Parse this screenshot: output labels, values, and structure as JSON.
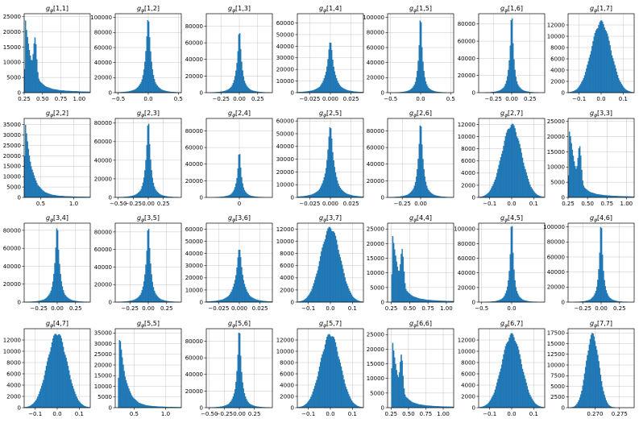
{
  "figure": {
    "bar_color": "#1f77b4",
    "grid_color": "#b0b0b0"
  },
  "chart_data": [
    {
      "type": "bar",
      "title_sub": "φ",
      "title_index": "[1,1]",
      "shape": "multimodal",
      "center": 0.3,
      "spread": 0.2,
      "xlim": [
        0.25,
        1.15
      ],
      "ylim": [
        0,
        26000
      ],
      "xticks": [
        0.25,
        0.5,
        0.75,
        1.0
      ],
      "xtick_labels": [
        "0.25",
        "0.50",
        "0.75",
        "1.00"
      ],
      "yticks": [
        0,
        5000,
        10000,
        15000,
        20000,
        25000
      ],
      "ytick_labels": [
        "0",
        "5000",
        "10000",
        "15000",
        "20000",
        "25000"
      ],
      "peak": 25500
    },
    {
      "type": "bar",
      "title_sub": "φ",
      "title_index": "[1,2]",
      "shape": "spike",
      "center": 0.0,
      "spread": 0.04,
      "xlim": [
        -0.55,
        0.55
      ],
      "ylim": [
        0,
        105000
      ],
      "xticks": [
        -0.5,
        0.0,
        0.5
      ],
      "xtick_labels": [
        "−0.5",
        "0.0",
        "0.5"
      ],
      "yticks": [
        0,
        20000,
        40000,
        60000,
        80000,
        100000
      ],
      "ytick_labels": [
        "0",
        "20000",
        "40000",
        "60000",
        "80000",
        "100000"
      ],
      "peak": 100000
    },
    {
      "type": "bar",
      "title_sub": "φ",
      "title_index": "[1,3]",
      "shape": "spike",
      "center": 0.0,
      "spread": 0.03,
      "xlim": [
        -0.45,
        0.45
      ],
      "ylim": [
        0,
        95000
      ],
      "xticks": [
        -0.25,
        0.0,
        0.25
      ],
      "xtick_labels": [
        "−0.25",
        "0.00",
        "0.25"
      ],
      "yticks": [
        0,
        20000,
        40000,
        60000,
        80000
      ],
      "ytick_labels": [
        "0",
        "20000",
        "40000",
        "60000",
        "80000"
      ],
      "peak": 72000
    },
    {
      "type": "bar",
      "title_sub": "φ",
      "title_index": "[1,4]",
      "shape": "spike",
      "center": 0.0,
      "spread": 0.004,
      "xlim": [
        -0.04,
        0.04
      ],
      "ylim": [
        0,
        68000
      ],
      "xticks": [
        -0.025,
        0.0,
        0.025
      ],
      "xtick_labels": [
        "−0.025",
        "0.000",
        "0.025"
      ],
      "yticks": [
        0,
        10000,
        20000,
        30000,
        40000,
        50000,
        60000
      ],
      "ytick_labels": [
        "0",
        "10000",
        "20000",
        "30000",
        "40000",
        "50000",
        "60000"
      ],
      "peak": 43000
    },
    {
      "type": "bar",
      "title_sub": "φ",
      "title_index": "[1,5]",
      "shape": "spike",
      "center": 0.0,
      "spread": 0.03,
      "xlim": [
        -0.55,
        0.55
      ],
      "ylim": [
        0,
        105000
      ],
      "xticks": [
        -0.5,
        0.0,
        0.5
      ],
      "xtick_labels": [
        "−0.5",
        "0.0",
        "0.5"
      ],
      "yticks": [
        0,
        20000,
        40000,
        60000,
        80000,
        100000
      ],
      "ytick_labels": [
        "0",
        "20000",
        "40000",
        "60000",
        "80000",
        "100000"
      ],
      "peak": 98000
    },
    {
      "type": "bar",
      "title_sub": "φ",
      "title_index": "[1,6]",
      "shape": "spike",
      "center": 0.0,
      "spread": 0.025,
      "xlim": [
        -0.45,
        0.45
      ],
      "ylim": [
        0,
        92000
      ],
      "xticks": [
        -0.25,
        0.0,
        0.25
      ],
      "xtick_labels": [
        "−0.25",
        "0.00",
        "0.25"
      ],
      "yticks": [
        0,
        20000,
        40000,
        60000,
        80000
      ],
      "ytick_labels": [
        "0",
        "20000",
        "40000",
        "60000",
        "80000"
      ],
      "peak": 88000
    },
    {
      "type": "bar",
      "title_sub": "φ",
      "title_index": "[1,7]",
      "shape": "normal",
      "center": 0.0,
      "spread": 0.045,
      "xlim": [
        -0.15,
        0.15
      ],
      "ylim": [
        0,
        14000
      ],
      "xticks": [
        -0.1,
        0.0,
        0.1
      ],
      "xtick_labels": [
        "−0.1",
        "0.0",
        "0.1"
      ],
      "yticks": [
        0,
        2000,
        4000,
        6000,
        8000,
        10000,
        12000
      ],
      "ytick_labels": [
        "0",
        "2000",
        "4000",
        "6000",
        "8000",
        "10000",
        "12000"
      ],
      "peak": 12800
    },
    {
      "type": "bar",
      "title_sub": "φ",
      "title_index": "[2,2]",
      "shape": "skew",
      "center": 0.32,
      "spread": 0.18,
      "xlim": [
        0.25,
        1.25
      ],
      "ylim": [
        0,
        38000
      ],
      "xticks": [
        0.5,
        1.0
      ],
      "xtick_labels": [
        "0.5",
        "1.0"
      ],
      "yticks": [
        0,
        5000,
        10000,
        15000,
        20000,
        25000,
        30000,
        35000
      ],
      "ytick_labels": [
        "0",
        "5000",
        "10000",
        "15000",
        "20000",
        "25000",
        "30000",
        "35000"
      ],
      "peak": 36000
    },
    {
      "type": "bar",
      "title_sub": "φ",
      "title_index": "[2,3]",
      "shape": "spike",
      "center": 0.0,
      "spread": 0.035,
      "xlim": [
        -0.55,
        0.55
      ],
      "ylim": [
        0,
        85000
      ],
      "xticks": [
        -0.5,
        -0.25,
        0.0,
        0.25
      ],
      "xtick_labels": [
        "−0.50",
        "−0.25",
        "0.00",
        "0.25"
      ],
      "yticks": [
        0,
        20000,
        40000,
        60000,
        80000
      ],
      "ytick_labels": [
        "0",
        "20000",
        "40000",
        "60000",
        "80000"
      ],
      "peak": 82000
    },
    {
      "type": "bar",
      "title_sub": "φ",
      "title_index": "[2,4]",
      "shape": "spike",
      "center": 0.0,
      "spread": 0.03,
      "xlim": [
        -0.5,
        0.5
      ],
      "ylim": [
        0,
        95000
      ],
      "xticks": [
        0.0
      ],
      "xtick_labels": [
        "0"
      ],
      "yticks": [
        0,
        20000,
        40000,
        60000,
        80000
      ],
      "ytick_labels": [
        "0",
        "20000",
        "40000",
        "60000",
        "80000"
      ],
      "peak": 52000
    },
    {
      "type": "bar",
      "title_sub": "φ",
      "title_index": "[2,5]",
      "shape": "spike",
      "center": 0.0,
      "spread": 0.004,
      "xlim": [
        -0.04,
        0.04
      ],
      "ylim": [
        0,
        62000
      ],
      "xticks": [
        -0.025,
        0.0,
        0.025
      ],
      "xtick_labels": [
        "−0.025",
        "0.000",
        "0.025"
      ],
      "yticks": [
        0,
        10000,
        20000,
        30000,
        40000,
        50000,
        60000
      ],
      "ytick_labels": [
        "0",
        "10000",
        "20000",
        "30000",
        "40000",
        "50000",
        "60000"
      ],
      "peak": 55000
    },
    {
      "type": "bar",
      "title_sub": "φ",
      "title_index": "[2,6]",
      "shape": "spike",
      "center": 0.0,
      "spread": 0.03,
      "xlim": [
        -0.45,
        0.45
      ],
      "ylim": [
        0,
        95000
      ],
      "xticks": [
        -0.25,
        0.0
      ],
      "xtick_labels": [
        "−0.25",
        "0.00"
      ],
      "yticks": [
        0,
        20000,
        40000,
        60000,
        80000
      ],
      "ytick_labels": [
        "0",
        "20000",
        "40000",
        "60000",
        "80000"
      ],
      "peak": 90000
    },
    {
      "type": "bar",
      "title_sub": "φ",
      "title_index": "[2,7]",
      "shape": "normal",
      "center": 0.0,
      "spread": 0.045,
      "xlim": [
        -0.15,
        0.15
      ],
      "ylim": [
        0,
        13000
      ],
      "xticks": [
        -0.1,
        0.0,
        0.1
      ],
      "xtick_labels": [
        "−0.1",
        "0.0",
        "0.1"
      ],
      "yticks": [
        0,
        2000,
        4000,
        6000,
        8000,
        10000,
        12000
      ],
      "ytick_labels": [
        "0",
        "2000",
        "4000",
        "6000",
        "8000",
        "10000",
        "12000"
      ],
      "peak": 12200
    },
    {
      "type": "bar",
      "title_sub": "φ",
      "title_index": "[3,3]",
      "shape": "multimodal",
      "center": 0.3,
      "spread": 0.18,
      "xlim": [
        0.25,
        1.1
      ],
      "ylim": [
        0,
        26000
      ],
      "xticks": [
        0.25,
        0.5,
        0.75,
        1.0
      ],
      "xtick_labels": [
        "0.25",
        "0.50",
        "0.75",
        "1.00"
      ],
      "yticks": [
        0,
        5000,
        10000,
        15000,
        20000,
        25000
      ],
      "ytick_labels": [
        "0",
        "5000",
        "10000",
        "15000",
        "20000",
        "25000"
      ],
      "peak": 25000
    },
    {
      "type": "bar",
      "title_sub": "φ",
      "title_index": "[3,4]",
      "shape": "spike",
      "center": 0.0,
      "spread": 0.03,
      "xlim": [
        -0.45,
        0.45
      ],
      "ylim": [
        0,
        88000
      ],
      "xticks": [
        -0.25,
        0.0,
        0.25
      ],
      "xtick_labels": [
        "−0.25",
        "0.00",
        "0.25"
      ],
      "yticks": [
        0,
        20000,
        40000,
        60000,
        80000
      ],
      "ytick_labels": [
        "0",
        "20000",
        "40000",
        "60000",
        "80000"
      ],
      "peak": 84000
    },
    {
      "type": "bar",
      "title_sub": "φ",
      "title_index": "[3,5]",
      "shape": "spike",
      "center": 0.0,
      "spread": 0.03,
      "xlim": [
        -0.45,
        0.45
      ],
      "ylim": [
        0,
        90000
      ],
      "xticks": [
        -0.25,
        0.0,
        0.25
      ],
      "xtick_labels": [
        "−0.25",
        "0.00",
        "0.25"
      ],
      "yticks": [
        0,
        20000,
        40000,
        60000,
        80000
      ],
      "ytick_labels": [
        "0",
        "20000",
        "40000",
        "60000",
        "80000"
      ],
      "peak": 85000
    },
    {
      "type": "bar",
      "title_sub": "φ",
      "title_index": "[3,6]",
      "shape": "spike",
      "center": 0.0,
      "spread": 0.004,
      "xlim": [
        -0.04,
        0.04
      ],
      "ylim": [
        0,
        65000
      ],
      "xticks": [
        -0.025,
        0.0,
        0.025
      ],
      "xtick_labels": [
        "−0.025",
        "0.000",
        "0.025"
      ],
      "yticks": [
        0,
        10000,
        20000,
        30000,
        40000,
        50000,
        60000
      ],
      "ytick_labels": [
        "0",
        "10000",
        "20000",
        "30000",
        "40000",
        "50000",
        "60000"
      ],
      "peak": 43000
    },
    {
      "type": "bar",
      "title_sub": "φ",
      "title_index": "[3,7]",
      "shape": "normal",
      "center": 0.0,
      "spread": 0.045,
      "xlim": [
        -0.15,
        0.15
      ],
      "ylim": [
        0,
        13000
      ],
      "xticks": [
        -0.1,
        0.0,
        0.1
      ],
      "xtick_labels": [
        "−0.1",
        "0.0",
        "0.1"
      ],
      "yticks": [
        0,
        2000,
        4000,
        6000,
        8000,
        10000,
        12000
      ],
      "ytick_labels": [
        "0",
        "2000",
        "4000",
        "6000",
        "8000",
        "10000",
        "12000"
      ],
      "peak": 12500
    },
    {
      "type": "bar",
      "title_sub": "φ",
      "title_index": "[4,4]",
      "shape": "multimodal",
      "center": 0.3,
      "spread": 0.2,
      "xlim": [
        0.2,
        1.1
      ],
      "ylim": [
        0,
        27000
      ],
      "xticks": [
        0.25,
        0.5,
        0.75,
        1.0
      ],
      "xtick_labels": [
        "0.25",
        "0.50",
        "0.75",
        "1.00"
      ],
      "yticks": [
        0,
        5000,
        10000,
        15000,
        20000,
        25000
      ],
      "ytick_labels": [
        "0",
        "5000",
        "10000",
        "15000",
        "20000",
        "25000"
      ],
      "peak": 25500
    },
    {
      "type": "bar",
      "title_sub": "φ",
      "title_index": "[4,5]",
      "shape": "spike",
      "center": 0.0,
      "spread": 0.03,
      "xlim": [
        -0.55,
        0.55
      ],
      "ylim": [
        0,
        108000
      ],
      "xticks": [
        -0.5,
        0.0
      ],
      "xtick_labels": [
        "−0.5",
        "0.0"
      ],
      "yticks": [
        0,
        20000,
        40000,
        60000,
        80000,
        100000
      ],
      "ytick_labels": [
        "0",
        "20000",
        "40000",
        "60000",
        "80000",
        "100000"
      ],
      "peak": 104000
    },
    {
      "type": "bar",
      "title_sub": "φ",
      "title_index": "[4,6]",
      "shape": "spike",
      "center": 0.0,
      "spread": 0.025,
      "xlim": [
        -0.45,
        0.45
      ],
      "ylim": [
        0,
        105000
      ],
      "xticks": [
        -0.25,
        0.0,
        0.25
      ],
      "xtick_labels": [
        "−0.25",
        "0.00",
        "0.25"
      ],
      "yticks": [
        0,
        20000,
        40000,
        60000,
        80000,
        100000
      ],
      "ytick_labels": [
        "0",
        "20000",
        "40000",
        "60000",
        "80000",
        "100000"
      ],
      "peak": 100000
    },
    {
      "type": "bar",
      "title_sub": "φ",
      "title_index": "[4,7]",
      "shape": "normal",
      "center": 0.0,
      "spread": 0.045,
      "xlim": [
        -0.15,
        0.15
      ],
      "ylim": [
        0,
        14000
      ],
      "xticks": [
        -0.1,
        0.0,
        0.1
      ],
      "xtick_labels": [
        "−0.1",
        "0.0",
        "0.1"
      ],
      "yticks": [
        0,
        2000,
        4000,
        6000,
        8000,
        10000,
        12000
      ],
      "ytick_labels": [
        "0",
        "2000",
        "4000",
        "6000",
        "8000",
        "10000",
        "12000"
      ],
      "peak": 13500
    },
    {
      "type": "bar",
      "title_sub": "φ",
      "title_index": "[5,5]",
      "shape": "skew",
      "center": 0.32,
      "spread": 0.18,
      "xlim": [
        0.2,
        1.25
      ],
      "ylim": [
        0,
        37000
      ],
      "xticks": [
        0.5,
        1.0
      ],
      "xtick_labels": [
        "0.5",
        "1.0"
      ],
      "yticks": [
        0,
        5000,
        10000,
        15000,
        20000,
        25000,
        30000,
        35000
      ],
      "ytick_labels": [
        "0",
        "5000",
        "10000",
        "15000",
        "20000",
        "25000",
        "30000",
        "35000"
      ],
      "peak": 35500
    },
    {
      "type": "bar",
      "title_sub": "φ",
      "title_index": "[5,6]",
      "shape": "spike",
      "center": 0.0,
      "spread": 0.035,
      "xlim": [
        -0.55,
        0.55
      ],
      "ylim": [
        0,
        95000
      ],
      "xticks": [
        -0.5,
        -0.25,
        0.0,
        0.25
      ],
      "xtick_labels": [
        "−0.50",
        "−0.25",
        "0.00",
        "0.25"
      ],
      "yticks": [
        0,
        20000,
        40000,
        60000,
        80000
      ],
      "ytick_labels": [
        "0",
        "20000",
        "40000",
        "60000",
        "80000"
      ],
      "peak": 90000
    },
    {
      "type": "bar",
      "title_sub": "φ",
      "title_index": "[5,7]",
      "shape": "normal",
      "center": 0.0,
      "spread": 0.045,
      "xlim": [
        -0.15,
        0.15
      ],
      "ylim": [
        0,
        14000
      ],
      "xticks": [
        -0.1,
        0.0,
        0.1
      ],
      "xtick_labels": [
        "−0.1",
        "0.0",
        "0.1"
      ],
      "yticks": [
        0,
        2000,
        4000,
        6000,
        8000,
        10000,
        12000
      ],
      "ytick_labels": [
        "0",
        "2000",
        "4000",
        "6000",
        "8000",
        "10000",
        "12000"
      ],
      "peak": 13300
    },
    {
      "type": "bar",
      "title_sub": "φ",
      "title_index": "[6,6]",
      "shape": "multimodal",
      "center": 0.3,
      "spread": 0.2,
      "xlim": [
        0.2,
        1.15
      ],
      "ylim": [
        0,
        27000
      ],
      "xticks": [
        0.25,
        0.5,
        0.75,
        1.0
      ],
      "xtick_labels": [
        "0.25",
        "0.50",
        "0.75",
        "1.00"
      ],
      "yticks": [
        0,
        5000,
        10000,
        15000,
        20000,
        25000
      ],
      "ytick_labels": [
        "0",
        "5000",
        "10000",
        "15000",
        "20000",
        "25000"
      ],
      "peak": 25500
    },
    {
      "type": "bar",
      "title_sub": "φ",
      "title_index": "[6,7]",
      "shape": "normal",
      "center": 0.0,
      "spread": 0.045,
      "xlim": [
        -0.15,
        0.15
      ],
      "ylim": [
        0,
        14000
      ],
      "xticks": [
        -0.1,
        0.0,
        0.1
      ],
      "xtick_labels": [
        "−0.1",
        "0.0",
        "0.1"
      ],
      "yticks": [
        0,
        2000,
        4000,
        6000,
        8000,
        10000,
        12000
      ],
      "ytick_labels": [
        "0",
        "2000",
        "4000",
        "6000",
        "8000",
        "10000",
        "12000"
      ],
      "peak": 13200
    },
    {
      "type": "bar",
      "title_sub": "φ",
      "title_index": "[7,7]",
      "shape": "normal",
      "center": 0.2695,
      "spread": 0.0013,
      "xlim": [
        0.2645,
        0.278
      ],
      "ylim": [
        0,
        18500
      ],
      "xticks": [
        0.27,
        0.275
      ],
      "xtick_labels": [
        "0.270",
        "0.275"
      ],
      "yticks": [
        0,
        2500,
        5000,
        7500,
        10000,
        12500,
        15000,
        17500
      ],
      "ytick_labels": [
        "0",
        "2500",
        "5000",
        "7500",
        "10000",
        "12500",
        "15000",
        "17500"
      ],
      "peak": 17500
    }
  ]
}
